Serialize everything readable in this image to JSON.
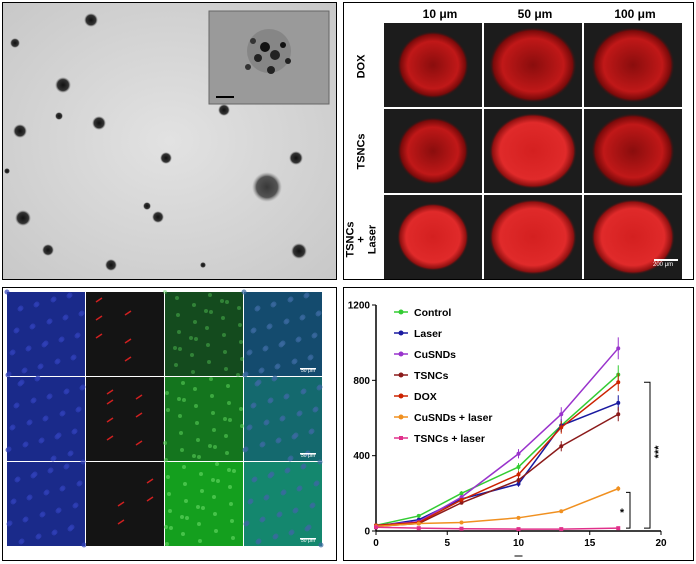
{
  "panel_b": {
    "columns": [
      "10 μm",
      "50 μm",
      "100 μm"
    ],
    "rows": [
      "DOX",
      "TSNCs",
      "TSNCs\n+\nLaser"
    ],
    "scale_bar": "200 μm"
  },
  "panel_c": {
    "scale_bars": [
      "50 μm",
      "50 μm",
      "50 μm"
    ]
  },
  "chart_data": {
    "type": "line",
    "x": [
      0,
      3,
      6,
      10,
      13,
      17
    ],
    "xlim": [
      0,
      20
    ],
    "ylim": [
      0,
      1200
    ],
    "xticks": [
      0,
      5,
      10,
      15,
      20
    ],
    "yticks": [
      0,
      400,
      800,
      1200
    ],
    "xlabel": "",
    "ylabel": "",
    "legend_position": "top-left",
    "series": [
      {
        "name": "Control",
        "color": "#33cc33",
        "values": [
          30,
          80,
          200,
          340,
          560,
          830
        ]
      },
      {
        "name": "Laser",
        "color": "#1a1aa0",
        "values": [
          25,
          60,
          170,
          250,
          560,
          680
        ]
      },
      {
        "name": "CuSNDs",
        "color": "#9933cc",
        "values": [
          30,
          50,
          180,
          410,
          620,
          970
        ]
      },
      {
        "name": "TSNCs",
        "color": "#8b1a1a",
        "values": [
          25,
          40,
          150,
          270,
          450,
          620
        ]
      },
      {
        "name": "DOX",
        "color": "#cc2200",
        "values": [
          30,
          45,
          165,
          300,
          550,
          790
        ]
      },
      {
        "name": "CuSNDs + laser",
        "color": "#f09020",
        "values": [
          25,
          40,
          45,
          70,
          105,
          225
        ]
      },
      {
        "name": "TSNCs + laser",
        "color": "#e0308a",
        "values": [
          20,
          15,
          12,
          10,
          10,
          15
        ]
      }
    ],
    "annotations": [
      "***",
      "*"
    ]
  }
}
